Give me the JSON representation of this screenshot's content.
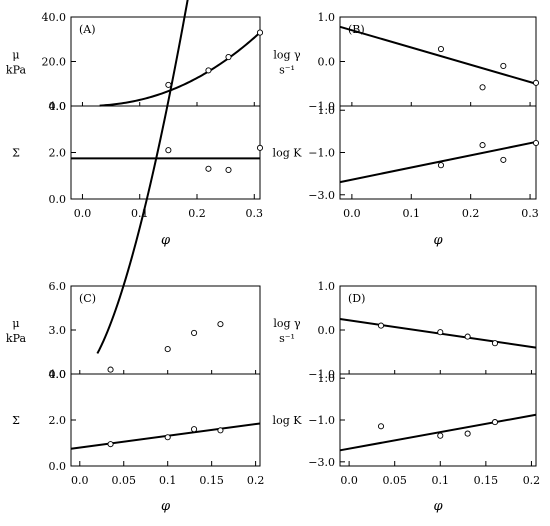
{
  "chart_data": [
    {
      "type": "scatter",
      "panel_label": "(A)",
      "xticks": [
        "0.0",
        "0.1",
        "0.2",
        "0.3"
      ],
      "xlabel": "φ",
      "xlim": [
        -0.02,
        0.31
      ],
      "subplots": [
        {
          "ylabel_lines": [
            "μ",
            "kPa"
          ],
          "ylim": [
            0,
            40
          ],
          "yticks": [
            "0.0",
            "20.0",
            "40.0"
          ],
          "points": [
            [
              0.15,
              9.5
            ],
            [
              0.22,
              16
            ],
            [
              0.255,
              22
            ],
            [
              0.31,
              33
            ]
          ],
          "fit": {
            "kind": "power",
            "x0": 0.03,
            "a": 33,
            "p": 2.2,
            "xmax": 0.31
          }
        },
        {
          "ylabel_lines": [
            "Σ"
          ],
          "ylim": [
            0,
            4
          ],
          "yticks": [
            "0.0",
            "2.0",
            "4.0"
          ],
          "points": [
            [
              0.15,
              2.1
            ],
            [
              0.22,
              1.3
            ],
            [
              0.255,
              1.25
            ],
            [
              0.31,
              2.2
            ]
          ],
          "fit": {
            "kind": "linear",
            "x": [
              -0.02,
              0.31
            ],
            "y": [
              1.75,
              1.75
            ]
          }
        }
      ]
    },
    {
      "type": "scatter",
      "panel_label": "(B)",
      "xticks": [
        "0.0",
        "0.1",
        "0.2",
        "0.3"
      ],
      "xlabel": "φ",
      "xlim": [
        -0.02,
        0.31
      ],
      "subplots": [
        {
          "ylabel_lines": [
            "log γ",
            "s⁻¹"
          ],
          "ylim": [
            -1,
            1
          ],
          "yticks": [
            "1.0",
            "0.0",
            "−1.0"
          ],
          "points": [
            [
              0.15,
              0.28
            ],
            [
              0.22,
              -0.58
            ],
            [
              0.255,
              -0.1
            ],
            [
              0.31,
              -0.48
            ]
          ],
          "fit": {
            "kind": "linear",
            "x": [
              -0.02,
              0.31
            ],
            "y": [
              0.78,
              -0.5
            ]
          }
        },
        {
          "ylabel_lines": [
            "log K"
          ],
          "ylim": [
            -3.2,
            1.2
          ],
          "yticks": [
            "1.0",
            "−1.0",
            "−3.0"
          ],
          "points": [
            [
              0.15,
              -1.6
            ],
            [
              0.22,
              -0.65
            ],
            [
              0.255,
              -1.35
            ],
            [
              0.31,
              -0.55
            ]
          ],
          "fit": {
            "kind": "linear",
            "x": [
              -0.02,
              0.31
            ],
            "y": [
              -2.4,
              -0.5
            ]
          }
        }
      ]
    },
    {
      "type": "scatter",
      "panel_label": "(C)",
      "xticks": [
        "0.0",
        "0.05",
        "0.1",
        "0.15",
        "0.2"
      ],
      "xlabel": "φ",
      "xlim": [
        -0.01,
        0.205
      ],
      "subplots": [
        {
          "ylabel_lines": [
            "μ",
            "kPa"
          ],
          "ylim": [
            0,
            6
          ],
          "yticks": [
            "0.0",
            "3.0",
            "6.0"
          ],
          "points": [
            [
              0.035,
              0.3
            ],
            [
              0.1,
              1.7
            ],
            [
              0.13,
              2.8
            ],
            [
              0.16,
              3.4
            ]
          ],
          "fit": {
            "kind": "power",
            "x0": 0.02,
            "a": 58,
            "p": 1.6,
            "xmax": 0.205
          }
        },
        {
          "ylabel_lines": [
            "Σ"
          ],
          "ylim": [
            0,
            4
          ],
          "yticks": [
            "0.0",
            "2.0",
            "4.0"
          ],
          "points": [
            [
              0.035,
              0.95
            ],
            [
              0.1,
              1.25
            ],
            [
              0.13,
              1.6
            ],
            [
              0.16,
              1.55
            ]
          ],
          "fit": {
            "kind": "linear",
            "x": [
              -0.01,
              0.205
            ],
            "y": [
              0.75,
              1.85
            ]
          }
        }
      ]
    },
    {
      "type": "scatter",
      "panel_label": "(D)",
      "xticks": [
        "0.0",
        "0.05",
        "0.1",
        "0.15",
        "0.2"
      ],
      "xlabel": "φ",
      "xlim": [
        -0.01,
        0.205
      ],
      "subplots": [
        {
          "ylabel_lines": [
            "log γ",
            "s⁻¹"
          ],
          "ylim": [
            -1,
            1
          ],
          "yticks": [
            "1.0",
            "0.0",
            "−1.0"
          ],
          "points": [
            [
              0.035,
              0.1
            ],
            [
              0.1,
              -0.05
            ],
            [
              0.13,
              -0.15
            ],
            [
              0.16,
              -0.3
            ]
          ],
          "fit": {
            "kind": "linear",
            "x": [
              -0.01,
              0.205
            ],
            "y": [
              0.25,
              -0.4
            ]
          }
        },
        {
          "ylabel_lines": [
            "log K"
          ],
          "ylim": [
            -3.2,
            1.2
          ],
          "yticks": [
            "1.0",
            "−1.0",
            "−3.0"
          ],
          "points": [
            [
              0.035,
              -1.3
            ],
            [
              0.1,
              -1.75
            ],
            [
              0.13,
              -1.65
            ],
            [
              0.16,
              -1.1
            ]
          ],
          "fit": {
            "kind": "linear",
            "x": [
              -0.01,
              0.205
            ],
            "y": [
              -2.45,
              -0.75
            ]
          }
        }
      ]
    }
  ]
}
